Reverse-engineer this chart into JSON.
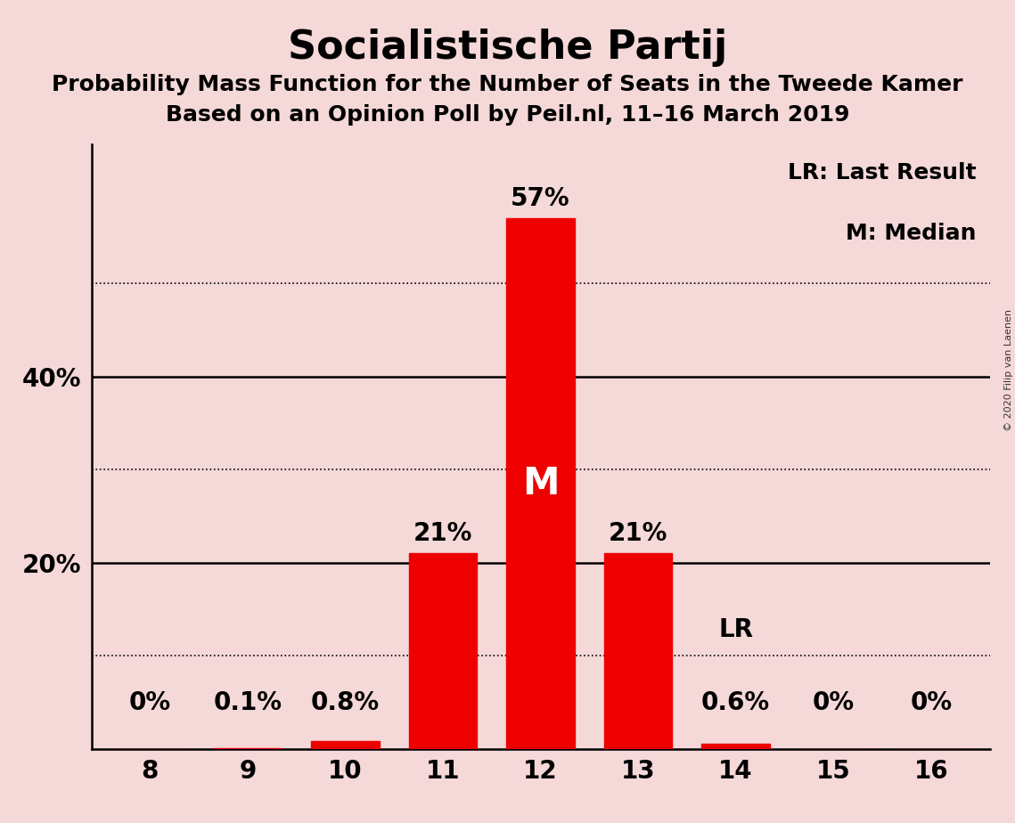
{
  "title": "Socialistische Partij",
  "subtitle1": "Probability Mass Function for the Number of Seats in the Tweede Kamer",
  "subtitle2": "Based on an Opinion Poll by Peil.nl, 11–16 March 2019",
  "categories": [
    8,
    9,
    10,
    11,
    12,
    13,
    14,
    15,
    16
  ],
  "values": [
    0.0,
    0.1,
    0.8,
    21.0,
    57.0,
    21.0,
    0.6,
    0.0,
    0.0
  ],
  "bar_color": "#ee0000",
  "background_color": "#f5d8d8",
  "bar_labels": [
    "0%",
    "0.1%",
    "0.8%",
    "21%",
    "57%",
    "21%",
    "0.6%",
    "0%",
    "0%"
  ],
  "median_bar_index": 4,
  "median_label": "M",
  "lr_bar_index": 6,
  "lr_label": "LR",
  "legend_text1": "LR: Last Result",
  "legend_text2": "M: Median",
  "copyright_text": "© 2020 Filip van Laenen",
  "ylim": [
    0,
    65
  ],
  "yticks": [
    20,
    40
  ],
  "ytick_labels": [
    "20%",
    "40%"
  ],
  "solid_yticks": [
    20,
    40
  ],
  "dotted_yticks": [
    10,
    30,
    50
  ],
  "bar_width": 0.7,
  "title_fontsize": 32,
  "subtitle_fontsize": 18,
  "tick_fontsize": 20,
  "bar_label_fontsize": 20,
  "legend_fontsize": 18,
  "median_fontsize": 30
}
